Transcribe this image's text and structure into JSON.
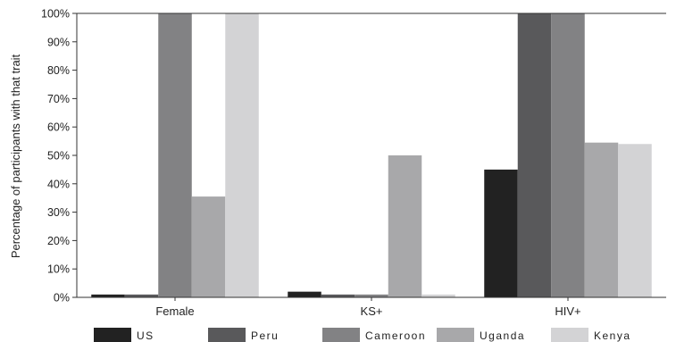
{
  "chart_data": {
    "type": "bar",
    "categories": [
      "Female",
      "KS+",
      "HIV+"
    ],
    "series": [
      {
        "name": "US",
        "values": [
          1,
          2,
          45
        ],
        "color": "#222222"
      },
      {
        "name": "Peru",
        "values": [
          1,
          1,
          100
        ],
        "color": "#59595b"
      },
      {
        "name": "Cameroon",
        "values": [
          100,
          1,
          100
        ],
        "color": "#828284"
      },
      {
        "name": "Uganda",
        "values": [
          35.5,
          50,
          54.5
        ],
        "color": "#a8a8aa"
      },
      {
        "name": "Kenya",
        "values": [
          100,
          1,
          54
        ],
        "color": "#d3d3d5"
      }
    ],
    "ylabel": "Percentage of participants with that trait",
    "yticks": [
      "0%",
      "10%",
      "20%",
      "30%",
      "40%",
      "50%",
      "60%",
      "70%",
      "80%",
      "90%",
      "100%"
    ],
    "ylim": [
      0,
      100
    ],
    "grid": false,
    "legend_position": "bottom"
  }
}
